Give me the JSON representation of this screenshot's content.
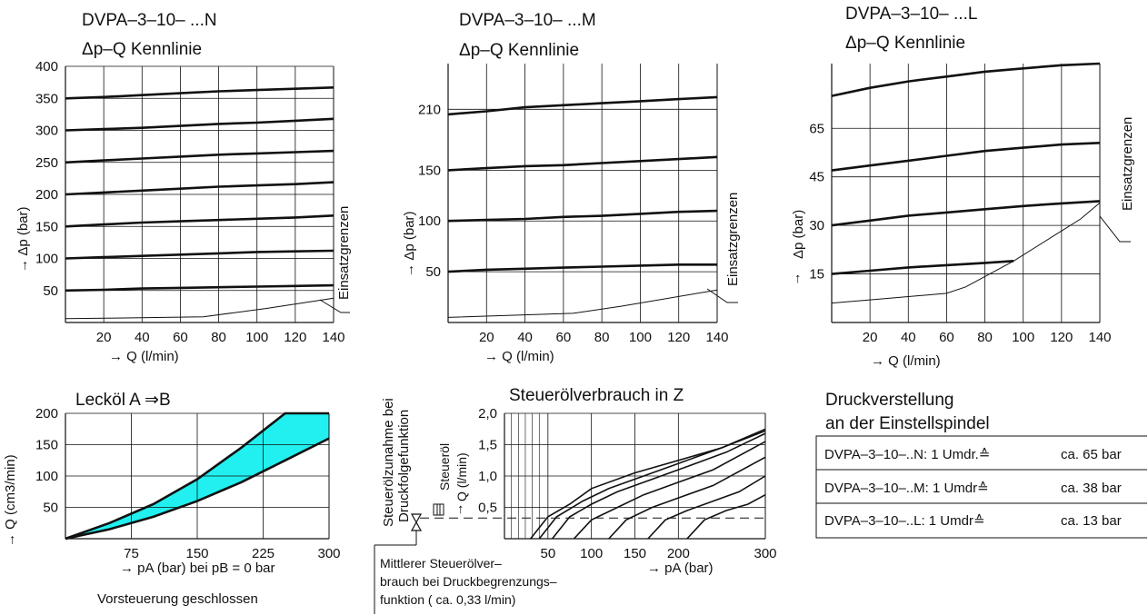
{
  "charts": {
    "n": {
      "title1": "DVPA–3–10– ...N",
      "title2": "Δp–Q Kennlinie",
      "xlabel": "→ Q (l/min)",
      "ylabel": "→ Δp (bar)",
      "side_label": "Einsatzgrenzen",
      "xticks": [
        "20",
        "40",
        "60",
        "80",
        "100",
        "120",
        "140"
      ],
      "yticks": [
        "50",
        "100",
        "150",
        "200",
        "250",
        "300",
        "350",
        "400"
      ]
    },
    "m": {
      "title1": "DVPA–3–10– ...M",
      "title2": "Δp–Q Kennlinie",
      "xlabel": "→ Q (l/min)",
      "ylabel": "→ Δp (bar)",
      "side_label": "Einsatzgrenzen",
      "xticks": [
        "20",
        "40",
        "60",
        "80",
        "100",
        "120",
        "140"
      ],
      "yticks": [
        "50",
        "100",
        "150",
        "210"
      ]
    },
    "l": {
      "title1": "DVPA–3–10– ...L",
      "title2": "Δp–Q Kennlinie",
      "xlabel": "→ Q (l/min)",
      "ylabel": "Δp (bar)",
      "yarrow": "↑",
      "side_label": "Einsatzgrenzen",
      "xticks": [
        "20",
        "40",
        "60",
        "80",
        "100",
        "120",
        "140"
      ],
      "yticks": [
        "15",
        "30",
        "45",
        "65"
      ]
    },
    "leak": {
      "title": "Lecköl A ⇒B",
      "xlabel": "→ pA (bar) bei pB = 0 bar",
      "note": "Vorsteuerung geschlossen",
      "ylabel": "→ Q (cm3/min)",
      "xticks": [
        "75",
        "150",
        "225",
        "300"
      ],
      "yticks": [
        "50",
        "100",
        "150",
        "200"
      ]
    },
    "pilot": {
      "title": "Steuerölverbrauch in Z",
      "xlabel": "→ pA (bar)",
      "ylabel_a": "Steueröl",
      "ylabel_b": "Q (l/min)",
      "ylabel_arrow": "↑",
      "left_label_1": "Steuerölzunahme bei",
      "left_label_2": "Druckfolgefunktion",
      "note_lines": [
        "Mittlerer Steuerölver–",
        "brauch bei Druckbegrenzungs–",
        "funktion ( ca. 0,33 l/min)"
      ],
      "xticks": [
        "50",
        "100",
        "150",
        "200",
        "300"
      ],
      "yticks": [
        "0,5",
        "1,0",
        "1,5",
        "2,0"
      ]
    }
  },
  "chart_data": [
    {
      "type": "line",
      "title": "DVPA–3–10– ...N Δp–Q Kennlinie",
      "xlabel": "→ Q (l/min)",
      "ylabel": "→ Δp (bar)",
      "xlim": [
        0,
        140
      ],
      "ylim": [
        0,
        400
      ],
      "grid": true,
      "x": [
        0,
        20,
        40,
        60,
        80,
        100,
        120,
        140
      ],
      "series": [
        {
          "values": [
            50,
            51,
            53,
            54,
            55,
            56,
            57,
            58
          ]
        },
        {
          "values": [
            100,
            102,
            104,
            106,
            108,
            110,
            111,
            112
          ]
        },
        {
          "values": [
            150,
            153,
            156,
            158,
            160,
            162,
            164,
            167
          ]
        },
        {
          "values": [
            200,
            203,
            206,
            209,
            212,
            214,
            216,
            219
          ]
        },
        {
          "values": [
            250,
            253,
            256,
            259,
            262,
            264,
            266,
            268
          ]
        },
        {
          "values": [
            300,
            302,
            304,
            307,
            310,
            312,
            315,
            318
          ]
        },
        {
          "values": [
            350,
            352,
            355,
            358,
            361,
            363,
            365,
            367
          ]
        }
      ],
      "limit_line": {
        "x": [
          0,
          27,
          72,
          105,
          140
        ],
        "y": [
          6,
          7,
          9,
          22,
          38
        ]
      }
    },
    {
      "type": "line",
      "title": "DVPA–3–10– ...M Δp–Q Kennlinie",
      "xlabel": "→ Q (l/min)",
      "ylabel": "→ Δp (bar)",
      "xlim": [
        0,
        140
      ],
      "ylim": [
        0,
        255
      ],
      "grid": true,
      "x": [
        0,
        20,
        40,
        60,
        80,
        100,
        120,
        140
      ],
      "series": [
        {
          "values": [
            50,
            52,
            53,
            54,
            55,
            56,
            57,
            57
          ]
        },
        {
          "values": [
            100,
            101,
            102,
            104,
            105,
            107,
            109,
            110
          ]
        },
        {
          "values": [
            150,
            152,
            154,
            155,
            157,
            159,
            161,
            163
          ]
        },
        {
          "values": [
            205,
            208,
            212,
            214,
            216,
            218,
            220,
            222
          ]
        }
      ],
      "limit_line": {
        "x": [
          0,
          65,
          90,
          140
        ],
        "y": [
          5,
          9,
          16,
          32
        ]
      }
    },
    {
      "type": "line",
      "title": "DVPA–3–10– ...L Δp–Q Kennlinie",
      "xlabel": "→ Q (l/min)",
      "ylabel": "Δp (bar)",
      "xlim": [
        0,
        140
      ],
      "ylim": [
        0,
        80
      ],
      "grid": true,
      "series": [
        {
          "x": [
            0,
            20,
            40,
            60,
            80,
            95
          ],
          "values": [
            15,
            16,
            17,
            17.7,
            18.4,
            19
          ]
        },
        {
          "x": [
            0,
            20,
            40,
            60,
            80,
            100,
            120,
            140
          ],
          "values": [
            30,
            31.5,
            33,
            34,
            35,
            36,
            36.8,
            37.5
          ]
        },
        {
          "x": [
            0,
            20,
            40,
            60,
            80,
            100,
            120,
            140
          ],
          "values": [
            47,
            48.5,
            50,
            51.5,
            53,
            54,
            55,
            55.5
          ]
        },
        {
          "x": [
            0,
            20,
            40,
            60,
            80,
            100,
            120,
            140
          ],
          "values": [
            70,
            72.5,
            74.5,
            76,
            77.5,
            78.5,
            79.5,
            80
          ]
        }
      ],
      "limit_line": {
        "x": [
          0,
          20,
          40,
          60,
          70,
          95,
          130,
          140
        ],
        "y": [
          6,
          7,
          8,
          9,
          11,
          19,
          32,
          37
        ]
      }
    },
    {
      "type": "area",
      "title": "Lecköl A ⇒B",
      "xlabel": "→ pA (bar) bei pB = 0 bar",
      "ylabel": "→ Q (cm3/min)",
      "xlim": [
        0,
        300
      ],
      "ylim": [
        0,
        200
      ],
      "grid": true,
      "x": [
        0,
        50,
        100,
        150,
        200,
        250,
        300
      ],
      "series": [
        {
          "values": [
            0,
            25,
            55,
            95,
            145,
            200,
            200
          ]
        },
        {
          "values": [
            0,
            15,
            35,
            60,
            90,
            125,
            160
          ]
        }
      ]
    },
    {
      "type": "line",
      "title": "Steuerölverbrauch in Z",
      "xlabel": "→ pA (bar)",
      "ylabel": "Steueröl Q (l/min)",
      "xlim": [
        0,
        300
      ],
      "ylim": [
        0,
        2.0
      ],
      "grid": true,
      "reference_line": {
        "y": 0.33,
        "label": "ca. 0,33 l/min"
      },
      "series": [
        {
          "x": [
            30,
            50,
            75,
            100,
            150,
            200,
            250,
            300
          ],
          "values": [
            0,
            0.35,
            0.55,
            0.8,
            1.05,
            1.25,
            1.45,
            1.75
          ]
        },
        {
          "x": [
            40,
            60,
            90,
            120,
            160,
            200,
            250,
            300
          ],
          "values": [
            0,
            0.35,
            0.6,
            0.8,
            1.0,
            1.2,
            1.45,
            1.72
          ]
        },
        {
          "x": [
            55,
            75,
            100,
            130,
            170,
            210,
            255,
            300
          ],
          "values": [
            0,
            0.35,
            0.55,
            0.75,
            0.95,
            1.15,
            1.38,
            1.68
          ]
        },
        {
          "x": [
            80,
            100,
            130,
            160,
            200,
            240,
            300
          ],
          "values": [
            0,
            0.3,
            0.5,
            0.7,
            0.9,
            1.1,
            1.55
          ]
        },
        {
          "x": [
            120,
            140,
            170,
            200,
            240,
            300
          ],
          "values": [
            0,
            0.3,
            0.5,
            0.65,
            0.85,
            1.3
          ]
        },
        {
          "x": [
            165,
            185,
            210,
            240,
            270,
            300
          ],
          "values": [
            0,
            0.3,
            0.45,
            0.6,
            0.75,
            1.0
          ]
        },
        {
          "x": [
            210,
            230,
            255,
            280,
            300
          ],
          "values": [
            0,
            0.3,
            0.45,
            0.55,
            0.7
          ]
        }
      ]
    }
  ],
  "table": {
    "title1": "Druckverstellung",
    "title2": "an der Einstellspindel",
    "rows": [
      {
        "label": "DVPA–3–10–..N: 1 Umdr.≙",
        "value": "ca. 65 bar"
      },
      {
        "label": "DVPA–3–10–..M: 1 Umdr≙",
        "value": "ca. 38 bar"
      },
      {
        "label": "DVPA–3–10–..L:  1 Umdr≙",
        "value": "ca. 13 bar"
      }
    ]
  },
  "colors": {
    "ink": "#111111",
    "leak_fill": "#22f0f0",
    "grid": "#111111"
  }
}
